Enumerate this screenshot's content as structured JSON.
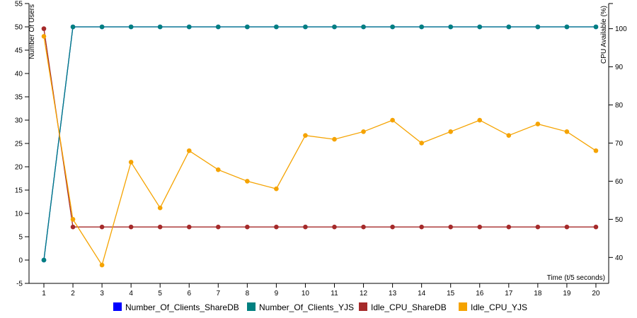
{
  "chart_data": {
    "type": "line",
    "categories": [
      "1",
      "2",
      "3",
      "4",
      "5",
      "6",
      "7",
      "8",
      "9",
      "10",
      "11",
      "12",
      "13",
      "14",
      "15",
      "16",
      "17",
      "18",
      "19",
      "20"
    ],
    "xlabel": "Time (t/5 seconds)",
    "ylabel_left": "Number Of Users",
    "ylabel_right": "CPU Available (%)",
    "ylim_left": [
      -5,
      55
    ],
    "yticks_left": [
      -5,
      0,
      5,
      10,
      15,
      20,
      25,
      30,
      35,
      40,
      45,
      50,
      55
    ],
    "ylim_right": [
      33.2,
      106.6
    ],
    "yticks_right": [
      40,
      50,
      60,
      70,
      80,
      90,
      100
    ],
    "legend_position": "bottom",
    "series": [
      {
        "name": "Number_Of_Clients_ShareDB",
        "color": "#0000ff",
        "axis": "left",
        "values": [
          0,
          50,
          50,
          50,
          50,
          50,
          50,
          50,
          50,
          50,
          50,
          50,
          50,
          50,
          50,
          50,
          50,
          50,
          50,
          50
        ]
      },
      {
        "name": "Number_Of_Clients_YJS",
        "color": "#008080",
        "axis": "left",
        "values": [
          0,
          50,
          50,
          50,
          50,
          50,
          50,
          50,
          50,
          50,
          50,
          50,
          50,
          50,
          50,
          50,
          50,
          50,
          50,
          50
        ]
      },
      {
        "name": "Idle_CPU_ShareDB",
        "color": "#a52a2a",
        "axis": "right",
        "values": [
          100,
          48,
          48,
          48,
          48,
          48,
          48,
          48,
          48,
          48,
          48,
          48,
          48,
          48,
          48,
          48,
          48,
          48,
          48,
          48
        ]
      },
      {
        "name": "Idle_CPU_YJS",
        "color": "#f5a300",
        "axis": "right",
        "values": [
          98,
          50,
          38,
          65,
          53,
          68,
          63,
          60,
          58,
          72,
          71,
          73,
          76,
          70,
          73,
          76,
          72,
          75,
          73,
          68
        ]
      }
    ]
  }
}
